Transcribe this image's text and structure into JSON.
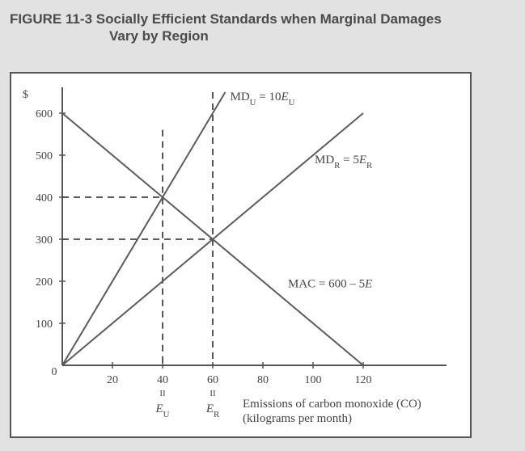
{
  "figure": {
    "title_prefix": "FIGURE 11-3",
    "title_line1": "Socially Efficient Standards when Marginal Damages",
    "title_line2": "Vary by Region"
  },
  "chart_data": {
    "type": "line",
    "ylabel": "$",
    "xlabel_line1": "Emissions of carbon monoxide (CO)",
    "xlabel_line2": "(kilograms per month)",
    "xlim": [
      0,
      135
    ],
    "ylim": [
      0,
      650
    ],
    "x_ticks": [
      20,
      40,
      60,
      80,
      100,
      120
    ],
    "y_ticks": [
      100,
      200,
      300,
      400,
      500,
      600
    ],
    "origin_label": "0",
    "grid": false,
    "series": [
      {
        "name": "MD_U = 10E_U",
        "label_main": "MD",
        "label_sub": "U",
        "label_eq": " = 10",
        "label_var": "E",
        "label_var_sub": "U",
        "points": [
          [
            0,
            0
          ],
          [
            65,
            650
          ]
        ]
      },
      {
        "name": "MD_R = 5E_R",
        "label_main": "MD",
        "label_sub": "R",
        "label_eq": " = 5",
        "label_var": "E",
        "label_var_sub": "R",
        "points": [
          [
            0,
            0
          ],
          [
            120,
            600
          ]
        ]
      },
      {
        "name": "MAC = 600 – 5E",
        "label_main": "MAC = 600 – 5",
        "label_var": "E",
        "points": [
          [
            0,
            600
          ],
          [
            120,
            0
          ]
        ]
      }
    ],
    "reference_lines": [
      {
        "type": "vertical",
        "x": 40,
        "y_top": 560,
        "label_eq": "II",
        "label_var": "E",
        "label_sub": "U"
      },
      {
        "type": "vertical",
        "x": 60,
        "y_top": 650,
        "label_eq": "II",
        "label_var": "E",
        "label_sub": "R"
      },
      {
        "type": "horizontal",
        "y": 400,
        "x_end": 40
      },
      {
        "type": "horizontal",
        "y": 300,
        "x_end": 60
      }
    ]
  }
}
